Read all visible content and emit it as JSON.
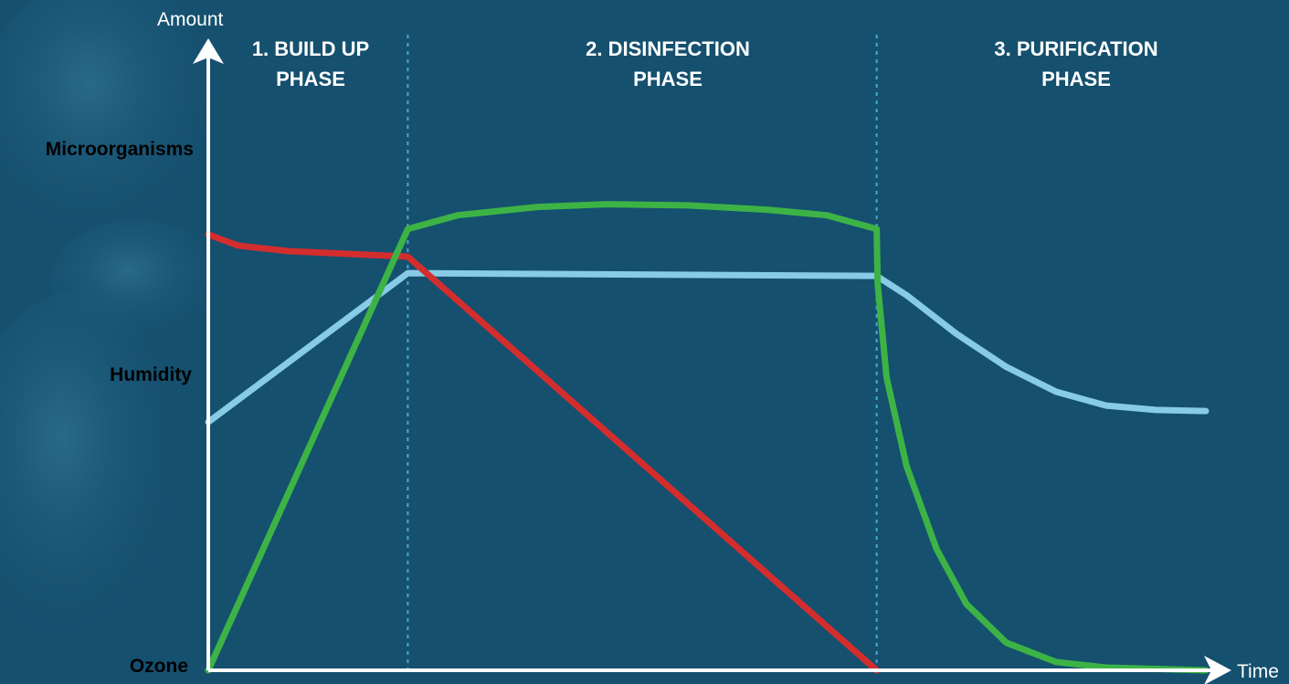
{
  "colors": {
    "background": "#15506f",
    "axis": "#ffffff",
    "phase_divider": "#4aa8c9",
    "microorganisms": "#d42d2e",
    "humidity": "#87cbe6",
    "ozone": "#3db346"
  },
  "chart_data": {
    "type": "line",
    "xlabel": "Time",
    "ylabel": "Amount",
    "xlim": [
      0,
      100
    ],
    "ylim": [
      0,
      100
    ],
    "grid": false,
    "ticks_shown": false,
    "phases": [
      {
        "label": "1. BUILD UP\nPHASE",
        "x_start": 0,
        "x_end": 20
      },
      {
        "label": "2. DISINFECTION\nPHASE",
        "x_start": 20,
        "x_end": 67
      },
      {
        "label": "3. PURIFICATION\nPHASE",
        "x_start": 67,
        "x_end": 100
      }
    ],
    "series": [
      {
        "name": "Microorganisms",
        "color": "#d42d2e",
        "points": [
          [
            0,
            79
          ],
          [
            3,
            77
          ],
          [
            8,
            76
          ],
          [
            14,
            75.5
          ],
          [
            20,
            75
          ],
          [
            67,
            0
          ]
        ]
      },
      {
        "name": "Humidity",
        "color": "#87cbe6",
        "points": [
          [
            0,
            45
          ],
          [
            20,
            72
          ],
          [
            67,
            71.5
          ],
          [
            70,
            68
          ],
          [
            75,
            61
          ],
          [
            80,
            55
          ],
          [
            85,
            50.5
          ],
          [
            90,
            48
          ],
          [
            95,
            47.2
          ],
          [
            100,
            47
          ]
        ]
      },
      {
        "name": "Ozone",
        "color": "#3db346",
        "points": [
          [
            0,
            0
          ],
          [
            20,
            80
          ],
          [
            25,
            82.5
          ],
          [
            33,
            84
          ],
          [
            40,
            84.5
          ],
          [
            48,
            84.3
          ],
          [
            56,
            83.5
          ],
          [
            62,
            82.5
          ],
          [
            67,
            80
          ],
          [
            67.1,
            70
          ],
          [
            68,
            53
          ],
          [
            70,
            37
          ],
          [
            73,
            22
          ],
          [
            76,
            12
          ],
          [
            80,
            5
          ],
          [
            85,
            1.5
          ],
          [
            90,
            0.5
          ],
          [
            100,
            0
          ]
        ]
      }
    ]
  }
}
